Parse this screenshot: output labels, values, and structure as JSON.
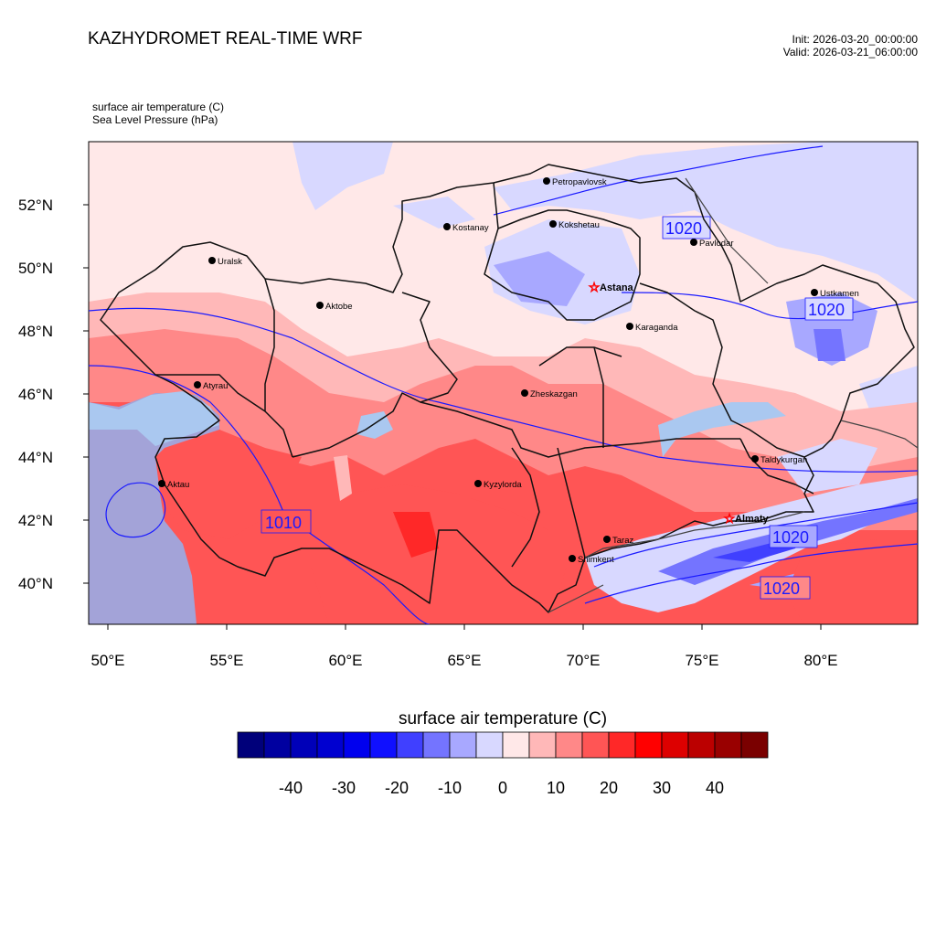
{
  "header": {
    "title": "KAZHYDROMET REAL-TIME WRF",
    "init": "Init: 2026-03-20_00:00:00",
    "valid": "Valid: 2026-03-21_06:00:00"
  },
  "variables": {
    "temperature": "surface air temperature   (C)",
    "pressure": "Sea Level Pressure   (hPa)"
  },
  "axes": {
    "lat_labels": [
      "52°N",
      "50°N",
      "48°N",
      "46°N",
      "44°N",
      "42°N",
      "40°N"
    ],
    "lon_labels": [
      "50°E",
      "55°E",
      "60°E",
      "65°E",
      "70°E",
      "75°E",
      "80°E"
    ]
  },
  "cities": [
    {
      "name": "Petropavlovsk",
      "capital": false
    },
    {
      "name": "Kostanay",
      "capital": false
    },
    {
      "name": "Kokshetau",
      "capital": false
    },
    {
      "name": "Pavlodar",
      "capital": false
    },
    {
      "name": "Uralsk",
      "capital": false
    },
    {
      "name": "Astana",
      "capital": true
    },
    {
      "name": "Ustkamen",
      "capital": false
    },
    {
      "name": "Aktobe",
      "capital": false
    },
    {
      "name": "Karaganda",
      "capital": false
    },
    {
      "name": "Atyrau",
      "capital": false
    },
    {
      "name": "Zheskazgan",
      "capital": false
    },
    {
      "name": "Taldykurgan",
      "capital": false
    },
    {
      "name": "Aktau",
      "capital": false
    },
    {
      "name": "Kyzylorda",
      "capital": false
    },
    {
      "name": "Almaty",
      "capital": true
    },
    {
      "name": "Taraz",
      "capital": false
    },
    {
      "name": "Shimkent",
      "capital": false
    }
  ],
  "isobar_labels": [
    "1020",
    "1020",
    "1010",
    "1020",
    "1020"
  ],
  "colorbar": {
    "title": "surface air temperature  (C)",
    "colors": [
      "#00007a",
      "#0000a0",
      "#0000b8",
      "#0000d0",
      "#0000ee",
      "#1010ff",
      "#4040ff",
      "#7474ff",
      "#a8a8ff",
      "#d8d8ff",
      "#ffe8e8",
      "#ffb8b8",
      "#ff8888",
      "#ff5555",
      "#ff2828",
      "#ff0000",
      "#dd0000",
      "#bb0000",
      "#990000",
      "#7a0000"
    ],
    "labels": [
      "-40",
      "-30",
      "-20",
      "-10",
      "0",
      "10",
      "20",
      "30",
      "40"
    ]
  }
}
